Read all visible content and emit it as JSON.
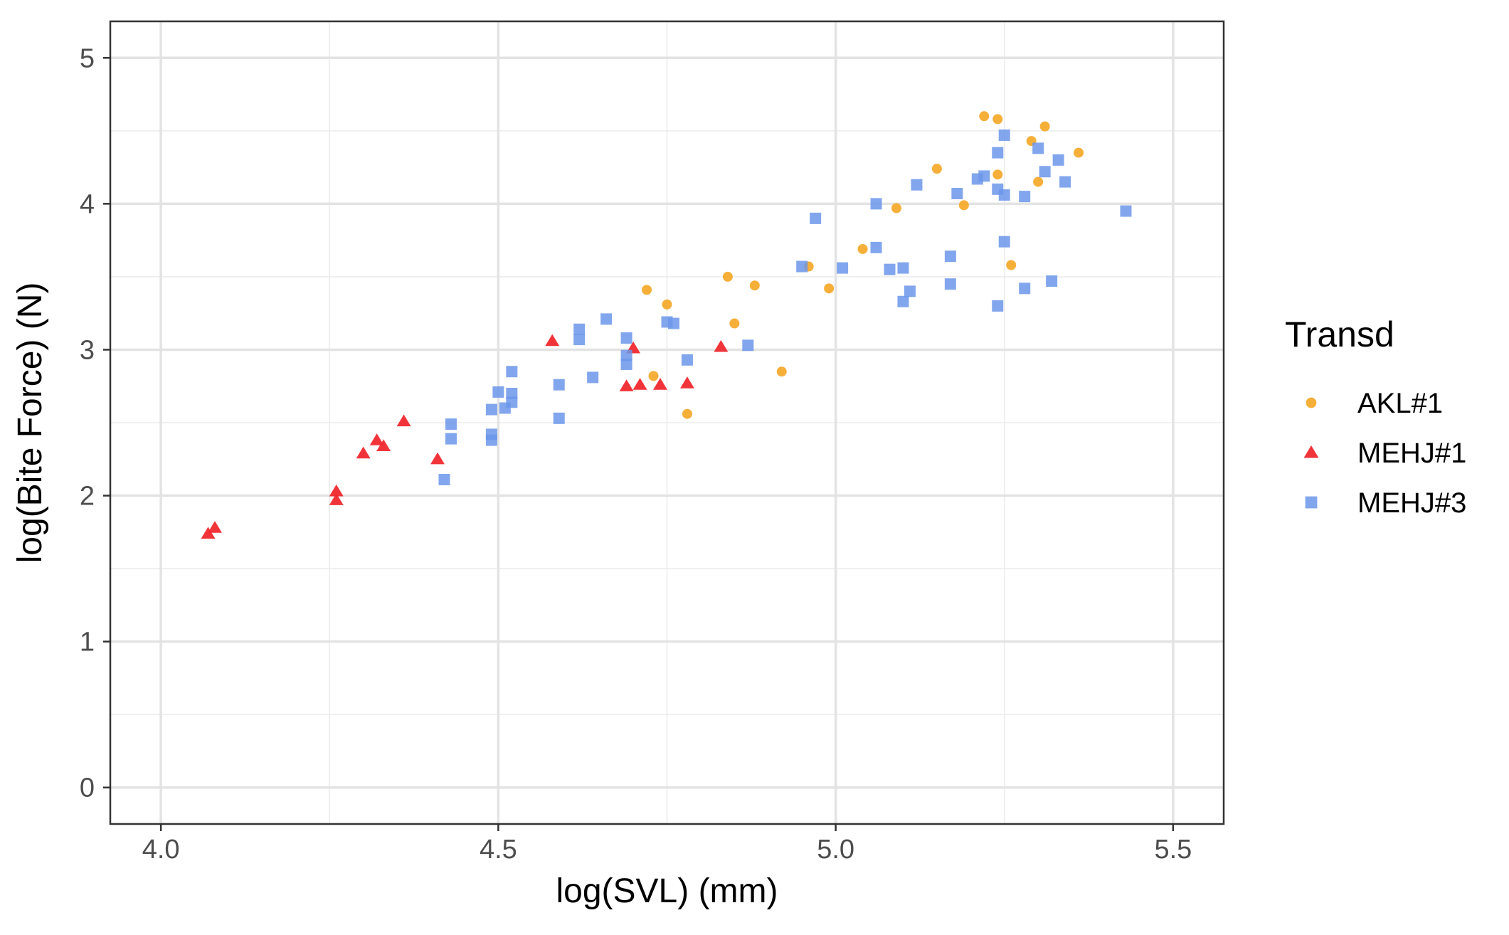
{
  "chart_data": {
    "type": "scatter",
    "title": "",
    "xlabel": "log(SVL) (mm)",
    "ylabel": "log(Bite Force) (N)",
    "xlim": [
      3.925,
      5.575
    ],
    "ylim": [
      -0.25,
      5.25
    ],
    "x_ticks": [
      4.0,
      4.5,
      5.0,
      5.5
    ],
    "x_tick_labels": [
      "4.0",
      "4.5",
      "5.0",
      "5.5"
    ],
    "y_ticks": [
      0,
      1,
      2,
      3,
      4,
      5
    ],
    "y_tick_labels": [
      "0",
      "1",
      "2",
      "3",
      "4",
      "5"
    ],
    "grid": true,
    "legend": {
      "title": "Transd",
      "placement": "right"
    },
    "series": [
      {
        "name": "AKL#1",
        "color": "#F5A623",
        "marker": "circle",
        "points": [
          [
            4.72,
            3.41
          ],
          [
            4.75,
            3.31
          ],
          [
            4.73,
            2.82
          ],
          [
            4.78,
            2.56
          ],
          [
            4.84,
            3.5
          ],
          [
            4.85,
            3.18
          ],
          [
            4.88,
            3.44
          ],
          [
            4.92,
            2.85
          ],
          [
            4.96,
            3.57
          ],
          [
            4.99,
            3.42
          ],
          [
            5.04,
            3.69
          ],
          [
            5.09,
            3.97
          ],
          [
            5.15,
            4.24
          ],
          [
            5.19,
            3.99
          ],
          [
            5.22,
            4.6
          ],
          [
            5.24,
            4.58
          ],
          [
            5.24,
            4.2
          ],
          [
            5.26,
            3.58
          ],
          [
            5.29,
            4.43
          ],
          [
            5.3,
            4.15
          ],
          [
            5.31,
            4.53
          ],
          [
            5.36,
            4.35
          ]
        ]
      },
      {
        "name": "MEHJ#1",
        "color": "#F0292E",
        "marker": "triangle",
        "points": [
          [
            4.07,
            1.74
          ],
          [
            4.08,
            1.78
          ],
          [
            4.26,
            2.03
          ],
          [
            4.26,
            1.97
          ],
          [
            4.3,
            2.29
          ],
          [
            4.32,
            2.38
          ],
          [
            4.33,
            2.34
          ],
          [
            4.36,
            2.51
          ],
          [
            4.41,
            2.25
          ],
          [
            4.58,
            3.06
          ],
          [
            4.69,
            2.75
          ],
          [
            4.7,
            3.01
          ],
          [
            4.71,
            2.76
          ],
          [
            4.74,
            2.76
          ],
          [
            4.78,
            2.77
          ],
          [
            4.83,
            3.02
          ]
        ]
      },
      {
        "name": "MEHJ#3",
        "color": "#6C96EA",
        "marker": "square",
        "points": [
          [
            4.42,
            2.11
          ],
          [
            4.43,
            2.49
          ],
          [
            4.43,
            2.39
          ],
          [
            4.49,
            2.42
          ],
          [
            4.49,
            2.38
          ],
          [
            4.49,
            2.59
          ],
          [
            4.5,
            2.71
          ],
          [
            4.51,
            2.6
          ],
          [
            4.52,
            2.85
          ],
          [
            4.52,
            2.7
          ],
          [
            4.52,
            2.64
          ],
          [
            4.59,
            2.53
          ],
          [
            4.59,
            2.76
          ],
          [
            4.62,
            3.14
          ],
          [
            4.62,
            3.07
          ],
          [
            4.64,
            2.81
          ],
          [
            4.66,
            3.21
          ],
          [
            4.69,
            3.08
          ],
          [
            4.69,
            2.96
          ],
          [
            4.69,
            2.9
          ],
          [
            4.75,
            3.19
          ],
          [
            4.76,
            3.18
          ],
          [
            4.78,
            2.93
          ],
          [
            4.87,
            3.03
          ],
          [
            4.95,
            3.57
          ],
          [
            4.97,
            3.9
          ],
          [
            5.01,
            3.56
          ],
          [
            5.06,
            3.7
          ],
          [
            5.06,
            4.0
          ],
          [
            5.08,
            3.55
          ],
          [
            5.1,
            3.56
          ],
          [
            5.1,
            3.33
          ],
          [
            5.11,
            3.4
          ],
          [
            5.12,
            4.13
          ],
          [
            5.17,
            3.45
          ],
          [
            5.17,
            3.64
          ],
          [
            5.18,
            4.07
          ],
          [
            5.21,
            4.17
          ],
          [
            5.22,
            4.19
          ],
          [
            5.24,
            4.1
          ],
          [
            5.24,
            3.3
          ],
          [
            5.24,
            4.35
          ],
          [
            5.25,
            4.47
          ],
          [
            5.25,
            3.74
          ],
          [
            5.25,
            4.06
          ],
          [
            5.28,
            4.05
          ],
          [
            5.28,
            3.42
          ],
          [
            5.3,
            4.38
          ],
          [
            5.31,
            4.22
          ],
          [
            5.32,
            3.47
          ],
          [
            5.33,
            4.3
          ],
          [
            5.34,
            4.15
          ],
          [
            5.43,
            3.95
          ]
        ]
      }
    ]
  }
}
